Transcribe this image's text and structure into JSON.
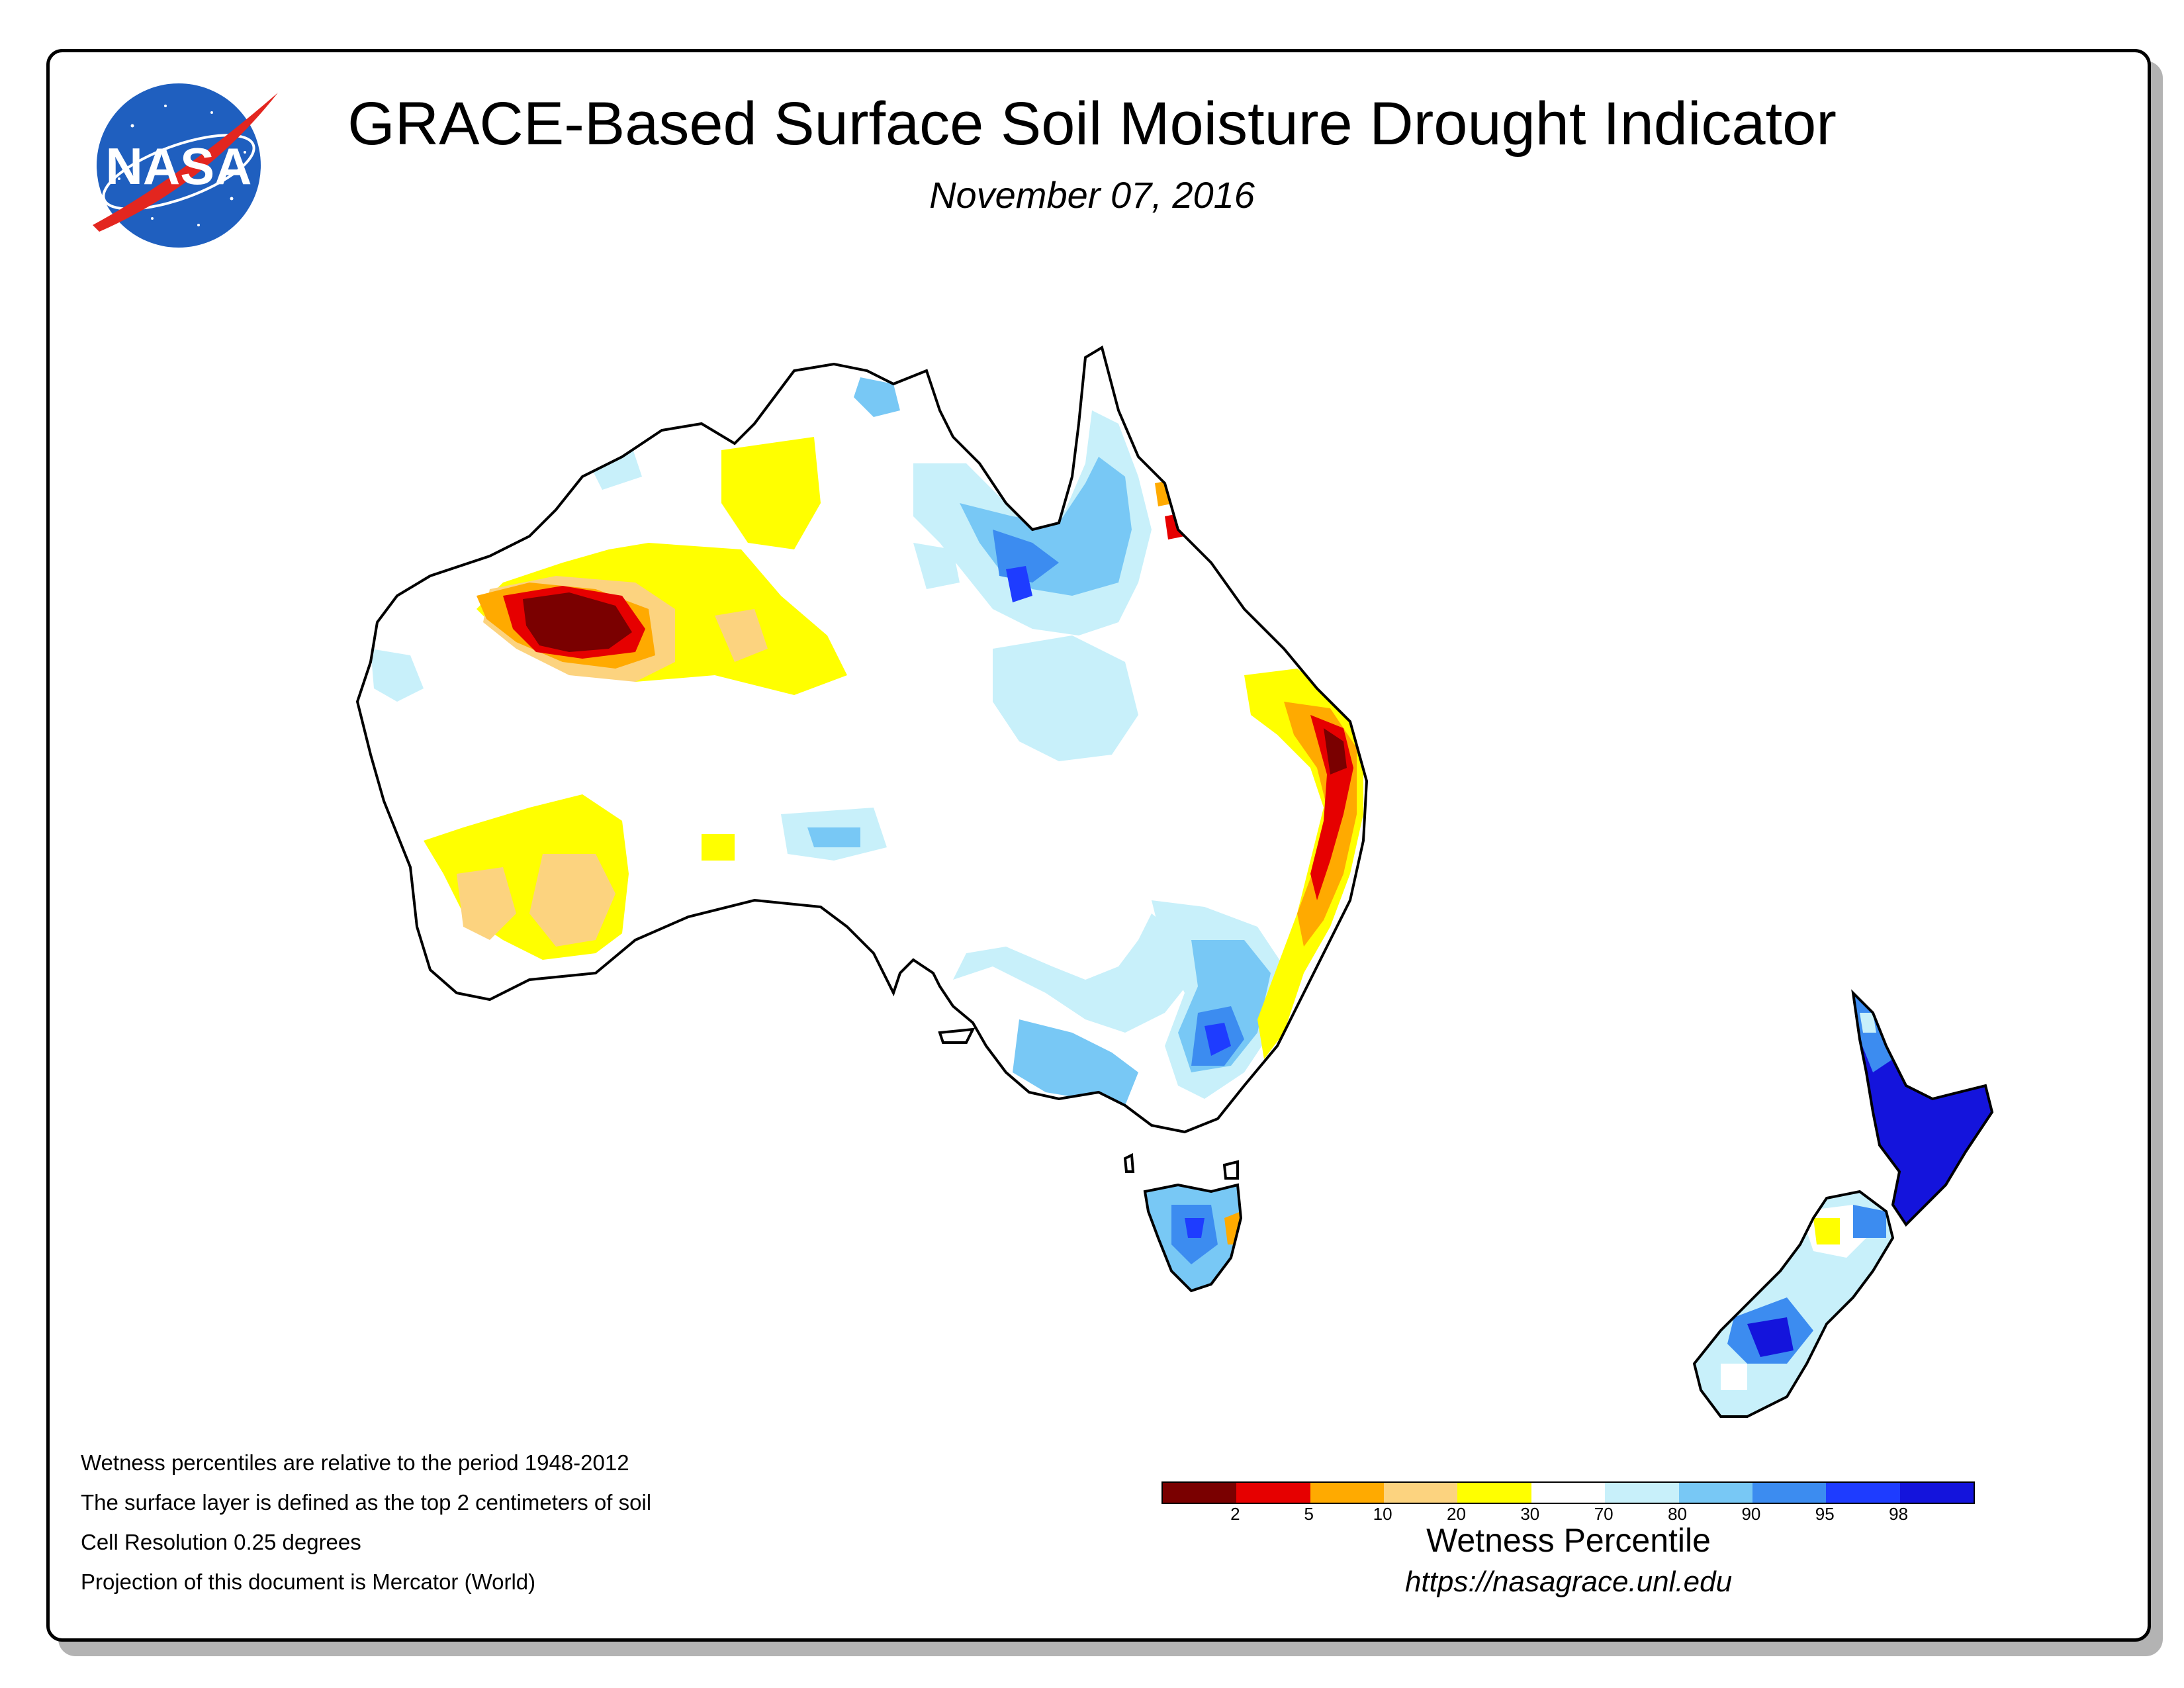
{
  "header": {
    "title": "GRACE-Based Surface Soil Moisture Drought Indicator",
    "date": "November 07, 2016"
  },
  "logo": {
    "text": "NASA",
    "colors": {
      "globe": "#1f5fbf",
      "swoosh": "#e3261f",
      "text": "#ffffff"
    }
  },
  "map": {
    "regions": [
      "Australia",
      "Tasmania",
      "New Zealand"
    ],
    "projection_label": "Mercator (World)"
  },
  "notes": [
    "Wetness percentiles are relative to the period 1948-2012",
    "The surface layer is defined as the top 2 centimeters of soil",
    "Cell Resolution 0.25 degrees",
    "Projection of this document is Mercator (World)"
  ],
  "legend": {
    "title": "Wetness Percentile",
    "colors": [
      "#7a0000",
      "#e60000",
      "#ffaa00",
      "#fcd37f",
      "#ffff00",
      "#ffffff",
      "#c8f0fa",
      "#78c8f5",
      "#3c8cf0",
      "#1e3cff",
      "#1414dc"
    ],
    "ticks": [
      "2",
      "5",
      "10",
      "20",
      "30",
      "70",
      "80",
      "90",
      "95",
      "98"
    ]
  },
  "footer": {
    "url": "https://nasagrace.unl.edu"
  }
}
